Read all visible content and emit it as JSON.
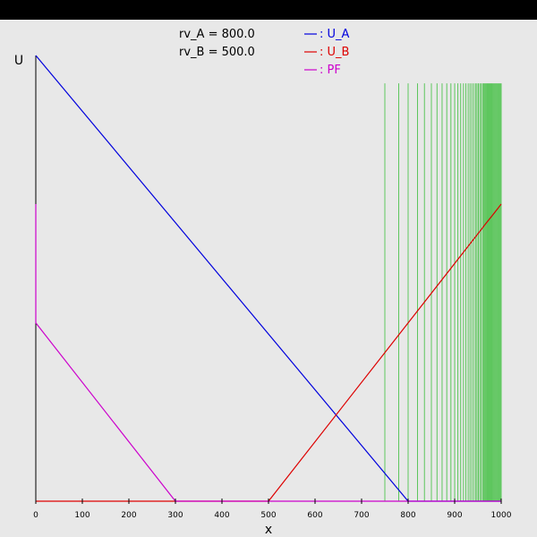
{
  "chart_data": {
    "type": "line",
    "params": [
      "rv_A = 800.0",
      "rv_B = 500.0"
    ],
    "xlabel": "x",
    "ylabel": "U",
    "xlim": [
      0,
      1000
    ],
    "ylim": [
      0,
      1
    ],
    "x_ticks": [
      "0",
      "100",
      "200",
      "300",
      "400",
      "500",
      "600",
      "700",
      "800",
      "900",
      "1000"
    ],
    "legend_position": "top",
    "series": [
      {
        "name": ": U_A",
        "color": "#0000dd",
        "points": [
          [
            0,
            1.0
          ],
          [
            800,
            0.0
          ],
          [
            1000,
            0.0
          ]
        ]
      },
      {
        "name": ": U_B",
        "color": "#dd0000",
        "points": [
          [
            0,
            0.0
          ],
          [
            500,
            0.0
          ],
          [
            1000,
            0.6667
          ]
        ]
      },
      {
        "name": ": PF",
        "color": "#cc00cc",
        "points": [
          [
            0,
            0.6667
          ],
          [
            0,
            0.4
          ],
          [
            300,
            0.0
          ],
          [
            1000,
            0.0
          ]
        ]
      }
    ],
    "vertical_lines": {
      "color": "#00b000",
      "from": 0,
      "to": 0.9375,
      "x": [
        750,
        780,
        800,
        820,
        835,
        850,
        862,
        873,
        883,
        892,
        900,
        907,
        913,
        919,
        924,
        929,
        933,
        937,
        941,
        945,
        948,
        951,
        954,
        957,
        960,
        962,
        964,
        966,
        968,
        970,
        972,
        974,
        976,
        978,
        980,
        982,
        984,
        986,
        988,
        990,
        992,
        994,
        996,
        998,
        1000
      ]
    }
  }
}
